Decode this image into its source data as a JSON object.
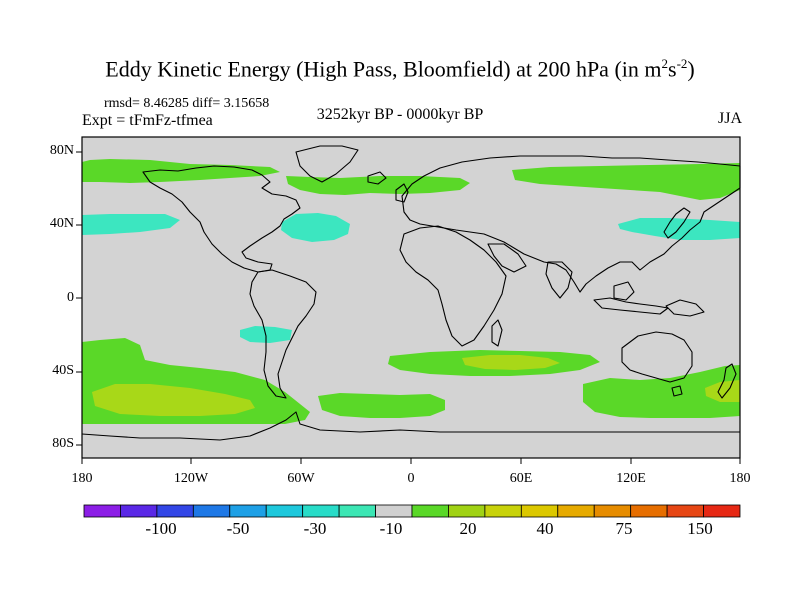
{
  "title": {
    "main": "Eddy Kinetic Energy (High Pass, Bloomfield) at 200 hPa (in m",
    "sup1": "2",
    "mid": "s",
    "sup2": "-2",
    "end": ")"
  },
  "stats": "rmsd= 8.46285 diff= 3.15658",
  "expt": "Expt = tFmFz-tfmea",
  "period": "3252kyr BP - 0000kyr BP",
  "season": "JJA",
  "lat_labels": [
    "80N",
    "40N",
    "0",
    "40S",
    "80S"
  ],
  "lon_labels": [
    "180",
    "120W",
    "60W",
    "0",
    "60E",
    "120E",
    "180"
  ],
  "colorbar": {
    "labels": [
      "-100",
      "-50",
      "-30",
      "-10",
      "20",
      "40",
      "75",
      "150"
    ],
    "colors": [
      "#8c1ee6",
      "#5a28e6",
      "#3246e6",
      "#1e78e6",
      "#1ea0e6",
      "#1ec8dc",
      "#28dcc8",
      "#3ce6b4",
      "#d0d0d0",
      "#5ad828",
      "#a0d214",
      "#c8d20a",
      "#dcc800",
      "#e6aa00",
      "#e68c00",
      "#e66e00",
      "#e64614",
      "#e62814"
    ]
  },
  "map_colors": {
    "neutral": "#d3d3d3",
    "pos_low": "#5ad828",
    "pos_mid": "#a8d818",
    "neg_low": "#3ce6c0"
  }
}
